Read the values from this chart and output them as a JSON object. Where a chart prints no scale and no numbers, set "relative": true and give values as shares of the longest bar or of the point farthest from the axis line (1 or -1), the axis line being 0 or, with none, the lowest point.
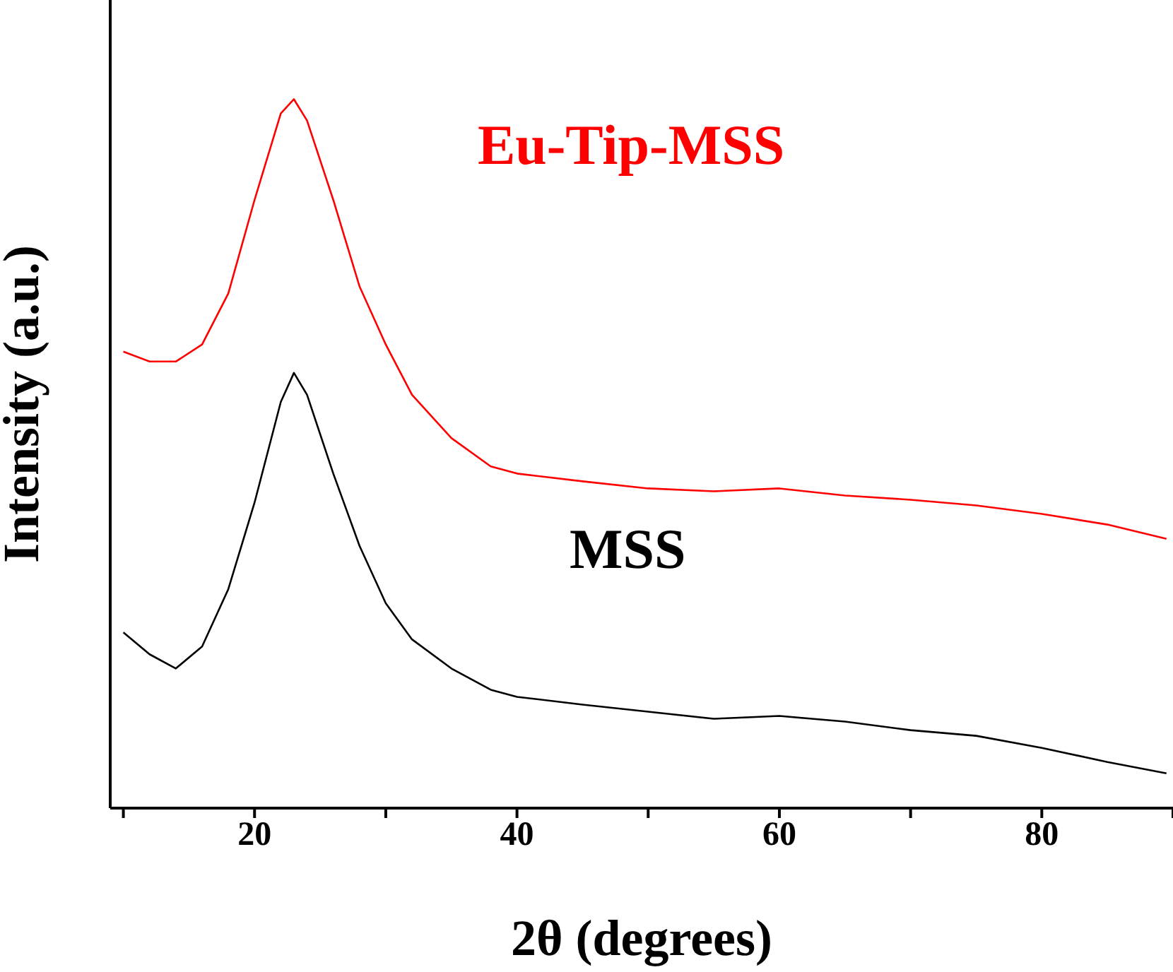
{
  "chart_data": {
    "type": "line",
    "xlabel": "2θ (degrees)",
    "ylabel": "Intensity (a.u.)",
    "relative": true,
    "marker": "none",
    "line_style": "solid",
    "x": [
      10,
      12,
      14,
      16,
      18,
      20,
      22,
      23,
      24,
      26,
      28,
      30,
      32,
      35,
      38,
      40,
      45,
      50,
      55,
      60,
      65,
      70,
      75,
      80,
      85,
      89.5
    ],
    "xlim": [
      9,
      90
    ],
    "xticks": [
      {
        "value": 10,
        "label": null
      },
      20,
      {
        "value": 30,
        "label": null
      },
      40,
      {
        "value": 50,
        "label": null
      },
      60,
      {
        "value": 70,
        "label": null
      },
      80,
      {
        "value": 90,
        "label": null
      }
    ],
    "series": [
      {
        "name": "Eu-Tip-MSS",
        "color": "#ff0000",
        "values": [
          0.644,
          0.63,
          0.63,
          0.654,
          0.726,
          0.858,
          0.98,
          1,
          0.97,
          0.858,
          0.736,
          0.654,
          0.583,
          0.522,
          0.482,
          0.472,
          0.461,
          0.451,
          0.447,
          0.451,
          0.441,
          0.435,
          0.427,
          0.415,
          0.4,
          0.38
        ]
      },
      {
        "name": "MSS",
        "color": "#000000",
        "values": [
          0.248,
          0.217,
          0.197,
          0.228,
          0.309,
          0.431,
          0.573,
          0.614,
          0.583,
          0.472,
          0.37,
          0.289,
          0.238,
          0.197,
          0.167,
          0.157,
          0.146,
          0.136,
          0.126,
          0.13,
          0.122,
          0.11,
          0.102,
          0.085,
          0.065,
          0.049
        ]
      }
    ]
  }
}
